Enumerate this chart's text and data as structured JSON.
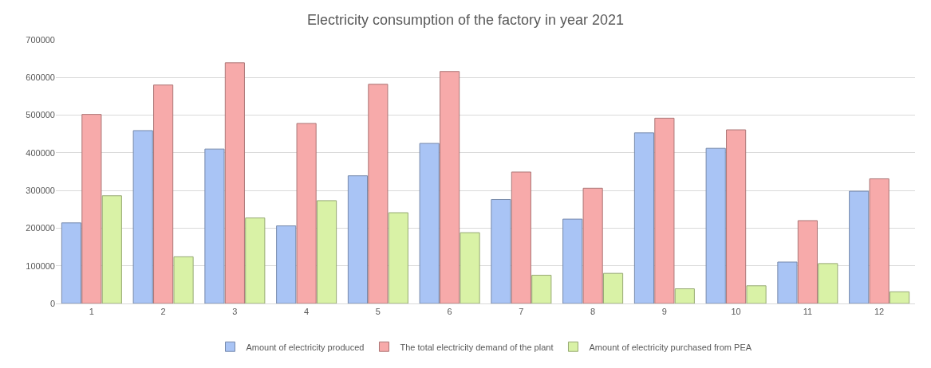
{
  "chart_data": {
    "type": "bar",
    "title": "Electricity consumption of the factory in year 2021",
    "categories": [
      "1",
      "2",
      "3",
      "4",
      "5",
      "6",
      "7",
      "8",
      "9",
      "10",
      "11",
      "12"
    ],
    "series": [
      {
        "name": "Amount of electricity produced",
        "color": "#a9c4f5",
        "values": [
          214000,
          459000,
          410000,
          206000,
          339000,
          425000,
          276000,
          224000,
          453000,
          412000,
          110000,
          298000
        ]
      },
      {
        "name": "The total electricity demand of the plant",
        "color": "#f7aaaa",
        "values": [
          502000,
          580000,
          639000,
          478000,
          582000,
          616000,
          349000,
          306000,
          492000,
          461000,
          220000,
          331000
        ]
      },
      {
        "name": "Amount of electricity purchased from PEA",
        "color": "#d9f2a6",
        "values": [
          286000,
          124000,
          227000,
          273000,
          241000,
          188000,
          75000,
          80000,
          39000,
          47000,
          106000,
          31000
        ]
      }
    ],
    "ylim": [
      0,
      700000
    ],
    "yticks": [
      0,
      100000,
      200000,
      300000,
      400000,
      500000,
      600000,
      700000
    ],
    "grid": "y",
    "legend": "bottom"
  }
}
